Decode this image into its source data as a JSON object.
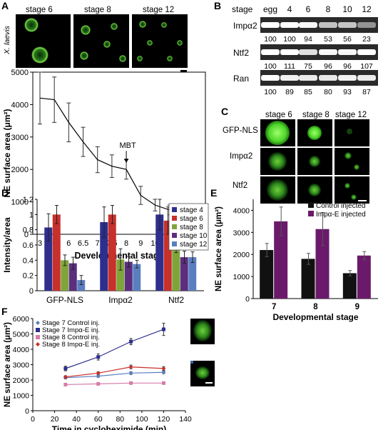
{
  "panels": {
    "A": {
      "letter": "A",
      "stages": [
        "stage 6",
        "stage 8",
        "stage 12"
      ],
      "species": "X. laevis",
      "chart_data": {
        "type": "line",
        "x": [
          "3",
          "5",
          "6",
          "6.5",
          "7",
          "7.5",
          "8",
          "9",
          "10",
          "11",
          "12",
          "14"
        ],
        "values": [
          4200,
          4150,
          3450,
          2850,
          2300,
          2100,
          2000,
          1200,
          900,
          750,
          700,
          700
        ],
        "errors": [
          800,
          700,
          600,
          450,
          400,
          350,
          300,
          280,
          180,
          150,
          120,
          120
        ],
        "ylabel": "NE surface area (μm²)",
        "xlabel": "Developmental stage",
        "yticks": [
          "0",
          "1000",
          "2000",
          "3000",
          "4000",
          "5000"
        ],
        "ylim": [
          0,
          5000
        ],
        "annotation": "MBT",
        "grid": false
      }
    },
    "B": {
      "letter": "B",
      "header_label": "stage",
      "stages": [
        "egg",
        "4",
        "6",
        "8",
        "10",
        "12"
      ],
      "blots": [
        {
          "name": "Impα2",
          "values": [
            "100",
            "100",
            "94",
            "53",
            "56",
            "23"
          ],
          "intensity": [
            1,
            1,
            0.95,
            0.6,
            0.62,
            0.3
          ]
        },
        {
          "name": "Ntf2",
          "values": [
            "100",
            "111",
            "75",
            "96",
            "96",
            "107"
          ],
          "intensity": [
            1,
            1,
            0.8,
            0.95,
            0.95,
            1
          ]
        },
        {
          "name": "Ran",
          "values": [
            "100",
            "89",
            "85",
            "80",
            "93",
            "87"
          ],
          "intensity": [
            1,
            0.9,
            0.88,
            0.85,
            0.92,
            0.88
          ]
        }
      ]
    },
    "C": {
      "letter": "C",
      "stages": [
        "stage 6",
        "stage 8",
        "stage 12"
      ],
      "rows": [
        "GFP-NLS",
        "Impα2",
        "Ntf2"
      ]
    },
    "D": {
      "letter": "D",
      "chart_data": {
        "type": "bar",
        "categories": [
          "GFP-NLS",
          "Impα2",
          "Ntf2"
        ],
        "series": [
          {
            "name": "stage 4",
            "values": [
              0.83,
              0.9,
              1.0
            ],
            "errors": [
              0.18,
              0.2,
              0.2
            ],
            "color": "#2e2e8c"
          },
          {
            "name": "stage 6",
            "values": [
              1.0,
              1.0,
              0.92
            ],
            "errors": [
              0.12,
              0.12,
              0.18
            ],
            "color": "#c8302c"
          },
          {
            "name": "stage 8",
            "values": [
              0.4,
              0.41,
              0.59
            ],
            "errors": [
              0.07,
              0.14,
              0.09
            ],
            "color": "#7fa53a"
          },
          {
            "name": "stage 10",
            "values": [
              0.36,
              0.38,
              0.44
            ],
            "errors": [
              0.08,
              0.07,
              0.08
            ],
            "color": "#5b2e7e"
          },
          {
            "name": "stage 12",
            "values": [
              0.14,
              0.35,
              0.44
            ],
            "errors": [
              0.06,
              0.05,
              0.07
            ],
            "color": "#5a7fc0"
          }
        ],
        "ylabel": "Intensity/area",
        "yticks": [
          "0",
          "0.2",
          "0.4",
          "0.6",
          "0.8",
          "1",
          "1.2"
        ],
        "ylim": [
          0,
          1.2
        ],
        "legend": "top-right"
      }
    },
    "E": {
      "letter": "E",
      "chart_data": {
        "type": "bar",
        "categories": [
          "7",
          "8",
          "9"
        ],
        "series": [
          {
            "name": "Control injected",
            "values": [
              2200,
              1800,
              1150
            ],
            "errors": [
              300,
              250,
              120
            ],
            "color": "#111111"
          },
          {
            "name": "Impα-E injected",
            "values": [
              3500,
              3150,
              1950
            ],
            "errors": [
              650,
              750,
              180
            ],
            "color": "#6b1a6b"
          }
        ],
        "ylabel": "NE surface area (μm²)",
        "xlabel": "Developmental stage",
        "yticks": [
          "0",
          "1000",
          "2000",
          "3000",
          "4000"
        ],
        "ylim": [
          0,
          4500
        ],
        "legend": "top-right"
      }
    },
    "F": {
      "letter": "F",
      "chart_data": {
        "type": "line",
        "x": [
          30,
          60,
          90,
          120
        ],
        "series": [
          {
            "name": "Stage 7 Control inj.",
            "values": [
              2150,
              2250,
              2450,
              2500
            ],
            "color": "#5a7fc0",
            "marker": "diamond"
          },
          {
            "name": "Stage 7 Impα-E inj.",
            "values": [
              2750,
              3500,
              4500,
              5300
            ],
            "color": "#2e2e8c",
            "marker": "square"
          },
          {
            "name": "Stage 8 Control inj.",
            "values": [
              1700,
              1750,
              1800,
              1800
            ],
            "color": "#d67ca8",
            "marker": "square"
          },
          {
            "name": "Stage 8 Impα-E inj.",
            "values": [
              2200,
              2450,
              2850,
              2750
            ],
            "color": "#c8302c",
            "marker": "diamond"
          }
        ],
        "errors": [
          [
            70,
            70,
            90,
            90
          ],
          [
            150,
            200,
            200,
            400
          ],
          [
            60,
            60,
            60,
            60
          ],
          [
            80,
            80,
            120,
            120
          ]
        ],
        "ylabel": "NE surface area (μm²)",
        "xlabel": "Time in cycloheximide (min)",
        "xticks": [
          "0",
          "20",
          "40",
          "60",
          "80",
          "100",
          "120",
          "140"
        ],
        "yticks": [
          "0",
          "1000",
          "2000",
          "3000",
          "4000",
          "5000",
          "6000"
        ],
        "xlim": [
          0,
          140
        ],
        "ylim": [
          0,
          6000
        ],
        "legend": "top-left"
      }
    }
  }
}
